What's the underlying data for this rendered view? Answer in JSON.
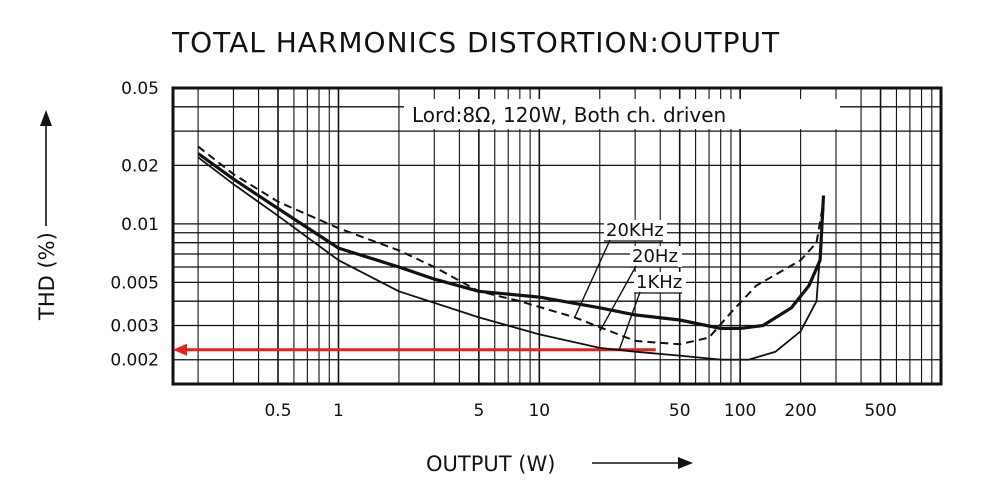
{
  "chart_data": {
    "type": "line",
    "title": "TOTAL HARMONICS DISTORTION:OUTPUT",
    "xlabel": "OUTPUT (W)",
    "ylabel": "THD (%)",
    "x_scale": "log",
    "y_scale": "log",
    "xlim": [
      0.15,
      1000
    ],
    "ylim": [
      0.0015,
      0.05
    ],
    "x_ticks": [
      {
        "value": 0.5,
        "label": "0.5"
      },
      {
        "value": 1,
        "label": "1"
      },
      {
        "value": 5,
        "label": "5"
      },
      {
        "value": 10,
        "label": "10"
      },
      {
        "value": 50,
        "label": "50"
      },
      {
        "value": 100,
        "label": "100"
      },
      {
        "value": 200,
        "label": "200"
      },
      {
        "value": 500,
        "label": "500"
      }
    ],
    "y_ticks": [
      {
        "value": 0.05,
        "label": "0.05"
      },
      {
        "value": 0.02,
        "label": "0.02"
      },
      {
        "value": 0.01,
        "label": "0.01"
      },
      {
        "value": 0.005,
        "label": "0.005"
      },
      {
        "value": 0.003,
        "label": "0.003"
      },
      {
        "value": 0.002,
        "label": "0.002"
      }
    ],
    "grid": true,
    "legend_text": "Lord:8Ω,  120W,  Both ch. driven",
    "legend_position": "top-right",
    "series": [
      {
        "name": "20KHz",
        "style": "dashed",
        "points": [
          [
            0.2,
            0.025
          ],
          [
            0.3,
            0.018
          ],
          [
            0.5,
            0.013
          ],
          [
            1,
            0.0095
          ],
          [
            2,
            0.0073
          ],
          [
            3,
            0.006
          ],
          [
            5,
            0.0045
          ],
          [
            8,
            0.004
          ],
          [
            15,
            0.0033
          ],
          [
            30,
            0.0025
          ],
          [
            50,
            0.0024
          ],
          [
            70,
            0.0026
          ],
          [
            90,
            0.0035
          ],
          [
            120,
            0.0048
          ],
          [
            200,
            0.0065
          ],
          [
            240,
            0.008
          ],
          [
            260,
            0.013
          ]
        ]
      },
      {
        "name": "20Hz",
        "style": "solid-bold",
        "points": [
          [
            0.2,
            0.023
          ],
          [
            0.3,
            0.017
          ],
          [
            0.5,
            0.012
          ],
          [
            1,
            0.0075
          ],
          [
            2,
            0.006
          ],
          [
            3,
            0.0052
          ],
          [
            5,
            0.0045
          ],
          [
            10,
            0.0042
          ],
          [
            20,
            0.0037
          ],
          [
            30,
            0.0034
          ],
          [
            50,
            0.0032
          ],
          [
            80,
            0.0029
          ],
          [
            100,
            0.0029
          ],
          [
            130,
            0.003
          ],
          [
            180,
            0.0037
          ],
          [
            220,
            0.0048
          ],
          [
            250,
            0.0065
          ],
          [
            260,
            0.014
          ]
        ]
      },
      {
        "name": "1KHz",
        "style": "solid",
        "points": [
          [
            0.2,
            0.022
          ],
          [
            0.3,
            0.016
          ],
          [
            0.5,
            0.011
          ],
          [
            1,
            0.0065
          ],
          [
            2,
            0.0045
          ],
          [
            5,
            0.0033
          ],
          [
            10,
            0.0027
          ],
          [
            20,
            0.0023
          ],
          [
            30,
            0.0022
          ],
          [
            50,
            0.0021
          ],
          [
            80,
            0.002
          ],
          [
            110,
            0.002
          ],
          [
            150,
            0.0022
          ],
          [
            200,
            0.0028
          ],
          [
            240,
            0.004
          ],
          [
            260,
            0.012
          ]
        ]
      }
    ],
    "annotations": [
      {
        "label": "20KHz",
        "x": 15,
        "y": 0.0033
      },
      {
        "label": "20Hz",
        "x": 20,
        "y": 0.0028
      },
      {
        "label": "1KHz",
        "x": 25,
        "y": 0.00225
      }
    ],
    "reference_line": {
      "y": 0.00225,
      "x_from": 0.15,
      "x_to": 38,
      "color": "#e8201a"
    }
  }
}
